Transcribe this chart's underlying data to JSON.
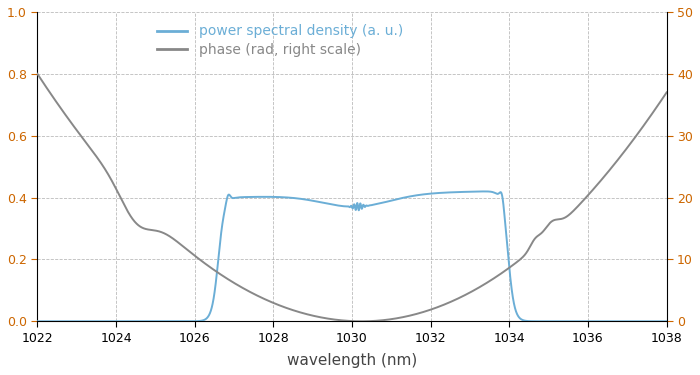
{
  "title": "",
  "xlabel": "wavelength (nm)",
  "xlim": [
    1022,
    1038
  ],
  "ylim_left": [
    0,
    1
  ],
  "ylim_right": [
    0,
    50
  ],
  "yticks_left": [
    0,
    0.2,
    0.4,
    0.6,
    0.8,
    1.0
  ],
  "yticks_right": [
    0,
    10,
    20,
    30,
    40,
    50
  ],
  "xticks": [
    1022,
    1024,
    1026,
    1028,
    1030,
    1032,
    1034,
    1036,
    1038
  ],
  "psd_color": "#6baed6",
  "phase_color": "#888888",
  "background_color": "#ffffff",
  "grid_color": "#aaaaaa",
  "tick_label_color": "#cc6600",
  "legend_psd": "power spectral density (a. u.)",
  "legend_phase": "phase (rad, right scale)",
  "legend_psd_color": "#6baed6",
  "legend_phase_color": "#888888",
  "figsize": [
    7.0,
    3.75
  ],
  "dpi": 100,
  "xlabel_color": "#444444",
  "xlabel_fontsize": 11
}
